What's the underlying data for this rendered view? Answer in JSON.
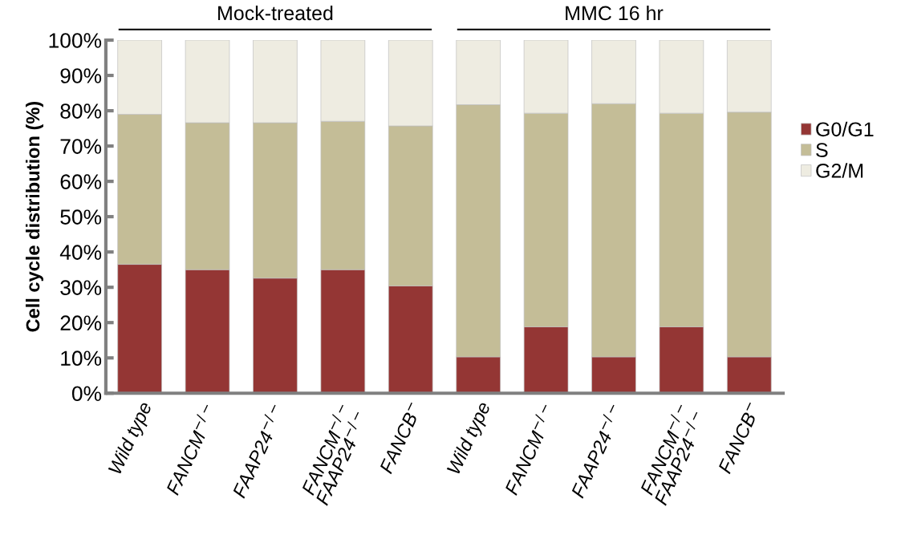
{
  "chart_data": {
    "type": "bar",
    "stacked": true,
    "ylabel": "Cell cycle distribution (%)",
    "categories": [
      "Wild type",
      "FANCM$^{−/−}$",
      "FAAP24$^{−/−}$",
      "FANCM$^{−/−}$\nFAAP24$^{−/−}$",
      "FANCB$^{−}$",
      "Wild type",
      "FANCM$^{−/−}$",
      "FAAP24$^{−/−}$",
      "FANCM$^{−/−}$\nFAAP24$^{−/−}$",
      "FANCB$^{−}$"
    ],
    "series": [
      {
        "name": "G0/G1",
        "color": "#943634",
        "values": [
          36.5,
          35.0,
          32.6,
          35.0,
          30.4,
          10.3,
          18.8,
          10.3,
          18.8,
          10.3
        ]
      },
      {
        "name": "S",
        "color": "#c4bd97",
        "values": [
          42.5,
          41.6,
          44.0,
          42.0,
          45.3,
          71.4,
          60.5,
          71.7,
          60.5,
          69.3
        ]
      },
      {
        "name": "G2/M",
        "color": "#eeece1",
        "values": [
          21.0,
          23.4,
          23.4,
          23.0,
          24.3,
          18.3,
          20.7,
          18.0,
          20.7,
          20.4
        ]
      }
    ],
    "ylim": [
      0,
      100
    ],
    "yticks": [
      {
        "value": 0,
        "label": "0%"
      },
      {
        "value": 10,
        "label": "10%"
      },
      {
        "value": 20,
        "label": "20%"
      },
      {
        "value": 30,
        "label": "30%"
      },
      {
        "value": 40,
        "label": "40%"
      },
      {
        "value": 50,
        "label": "50%"
      },
      {
        "value": 60,
        "label": "60%"
      },
      {
        "value": 70,
        "label": "70%"
      },
      {
        "value": 80,
        "label": "80%"
      },
      {
        "value": 90,
        "label": "90%"
      },
      {
        "value": 100,
        "label": "100%"
      }
    ],
    "annotations": [
      "Mock-treated",
      "MMC 16 hr"
    ],
    "legend": "right",
    "grid": false
  }
}
